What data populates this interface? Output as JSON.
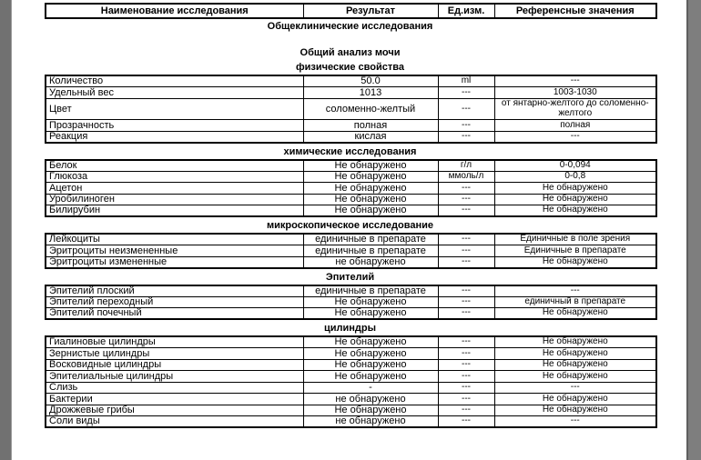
{
  "colors": {
    "page_background": "#ffffff",
    "left_gutter": "#717171",
    "right_gutter": "#7e7e7e",
    "border": "#000000",
    "text": "#000000"
  },
  "table_header": {
    "columns": [
      "Наименование исследования",
      "Результат",
      "Ед.изм.",
      "Референсные значения"
    ]
  },
  "doc_title": "Общеклинические исследования",
  "report_title": "Общий анализ мочи",
  "sections": [
    {
      "title": "физические свойства",
      "rows": [
        {
          "name": "Количество",
          "result": "50.0",
          "unit": "ml",
          "reference": "---"
        },
        {
          "name": "Удельный вес",
          "result": "1013",
          "unit": "---",
          "reference": "1003-1030"
        },
        {
          "name": "Цвет",
          "result": "соломенно-желтый",
          "unit": "---",
          "reference": "от янтарно-желтого до соломенно-желтого",
          "tall": true
        },
        {
          "name": "Прозрачность",
          "result": "полная",
          "unit": "---",
          "reference": "полная"
        },
        {
          "name": "Реакция",
          "result": "кислая",
          "unit": "---",
          "reference": "---"
        }
      ]
    },
    {
      "title": "химические исследования",
      "rows": [
        {
          "name": "Белок",
          "result": "Не обнаружено",
          "unit": "г/л",
          "reference": "0-0,094"
        },
        {
          "name": "Глюкоза",
          "result": "Не обнаружено",
          "unit": "ммоль/л",
          "reference": "0-0,8"
        },
        {
          "name": "Ацетон",
          "result": "Не обнаружено",
          "unit": "---",
          "reference": "Не обнаружено"
        },
        {
          "name": "Уробилиноген",
          "result": "Не обнаружено",
          "unit": "---",
          "reference": "Не обнаружено"
        },
        {
          "name": "Билирубин",
          "result": "Не обнаружено",
          "unit": "---",
          "reference": "Не обнаружено"
        }
      ]
    },
    {
      "title": "микроскопическое исследование",
      "rows": [
        {
          "name": "Лейкоциты",
          "result": "единичные в препарате",
          "unit": "---",
          "reference": "Единичные в поле зрения"
        },
        {
          "name": "Эритроциты неизмененные",
          "result": "единичные в препарате",
          "unit": "---",
          "reference": "Единичные в препарате"
        },
        {
          "name": "Эритроциты измененные",
          "result": "не обнаружено",
          "unit": "---",
          "reference": "Не обнаружено"
        }
      ]
    },
    {
      "title": "Эпителий",
      "rows": [
        {
          "name": "Эпителий плоский",
          "result": "единичные в препарате",
          "unit": "---",
          "reference": "---"
        },
        {
          "name": "Эпителий переходный",
          "result": "Не обнаружено",
          "unit": "---",
          "reference": "единичный в препарате"
        },
        {
          "name": "Эпителий почечный",
          "result": "Не обнаружено",
          "unit": "---",
          "reference": "Не обнаружено"
        }
      ]
    },
    {
      "title": "цилиндры",
      "rows": [
        {
          "name": "Гиалиновые цилиндры",
          "result": "Не обнаружено",
          "unit": "---",
          "reference": "Не обнаружено"
        },
        {
          "name": "Зернистые цилиндры",
          "result": "Не обнаружено",
          "unit": "---",
          "reference": "Не обнаружено"
        },
        {
          "name": "Восковидные цилиндры",
          "result": "Не обнаружено",
          "unit": "---",
          "reference": "Не обнаружено"
        },
        {
          "name": "Эпителиальные цилиндры",
          "result": "Не обнаружено",
          "unit": "---",
          "reference": "Не обнаружено"
        },
        {
          "name": "Слизь",
          "result": "-",
          "unit": "---",
          "reference": "---"
        },
        {
          "name": "Бактерии",
          "result": "не обнаружено",
          "unit": "---",
          "reference": "Не обнаружено"
        },
        {
          "name": "Дрожжевые грибы",
          "result": "Не обнаружено",
          "unit": "---",
          "reference": "Не обнаружено"
        },
        {
          "name": "Соли виды",
          "result": "не обнаружено",
          "unit": "---",
          "reference": "---"
        }
      ]
    }
  ]
}
